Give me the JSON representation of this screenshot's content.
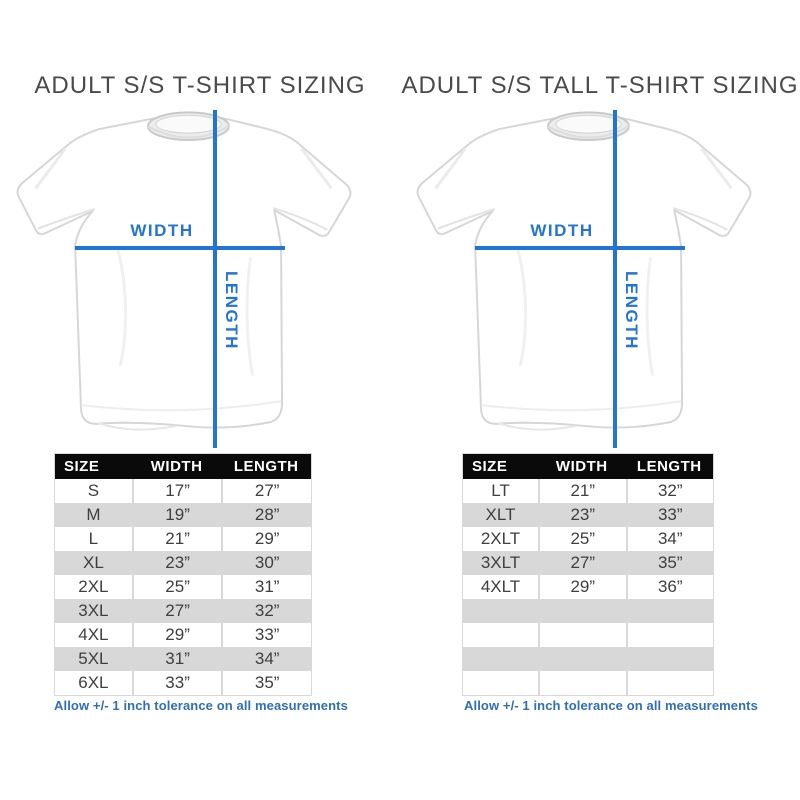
{
  "left_panel": {
    "title": "ADULT S/S T-SHIRT SIZING",
    "diagram": {
      "width_label": "WIDTH",
      "length_label": "LENGTH"
    },
    "table": {
      "headers": [
        "SIZE",
        "WIDTH",
        "LENGTH"
      ],
      "rows": [
        [
          "S",
          "17”",
          "27”"
        ],
        [
          "M",
          "19”",
          "28”"
        ],
        [
          "L",
          "21”",
          "29”"
        ],
        [
          "XL",
          "23”",
          "30”"
        ],
        [
          "2XL",
          "25”",
          "31”"
        ],
        [
          "3XL",
          "27”",
          "32”"
        ],
        [
          "4XL",
          "29”",
          "33”"
        ],
        [
          "5XL",
          "31”",
          "34”"
        ],
        [
          "6XL",
          "33”",
          "35”"
        ]
      ]
    },
    "footnote": "Allow +/- 1 inch tolerance on all measurements"
  },
  "right_panel": {
    "title": "ADULT S/S TALL T-SHIRT SIZING",
    "diagram": {
      "width_label": "WIDTH",
      "length_label": "LENGTH"
    },
    "table": {
      "headers": [
        "SIZE",
        "WIDTH",
        "LENGTH"
      ],
      "rows": [
        [
          "LT",
          "21”",
          "32”"
        ],
        [
          "XLT",
          "23”",
          "33”"
        ],
        [
          "2XLT",
          "25”",
          "34”"
        ],
        [
          "3XLT",
          "27”",
          "35”"
        ],
        [
          "4XLT",
          "29”",
          "36”"
        ],
        [
          "",
          "",
          ""
        ],
        [
          "",
          "",
          ""
        ],
        [
          "",
          "",
          ""
        ],
        [
          "",
          "",
          ""
        ]
      ]
    },
    "footnote": "Allow +/- 1 inch tolerance on all measurements"
  },
  "colors": {
    "accent_blue": "#2274d6",
    "footnote_blue": "#2f6fb6",
    "table_header_bg": "#0a0a0a",
    "table_row_alt": "#d8d8d8",
    "table_text": "#3f3f3f",
    "title_text": "#4a4a4a"
  }
}
